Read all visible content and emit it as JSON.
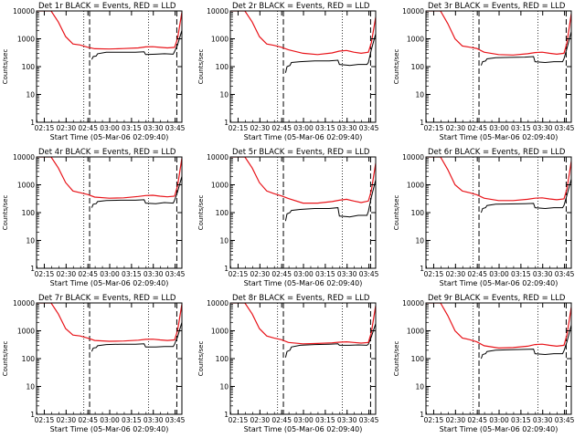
{
  "chart_data": {
    "type": "line",
    "layout": "3x3 grid of panels",
    "y_scale": "log",
    "ylim": [
      1,
      10000
    ],
    "y_tick_labels": [
      "1",
      "10",
      "100",
      "1000",
      "10000"
    ],
    "ylabel": "Counts/sec",
    "xlabel": "Start Time (05-Mar-06 02:09:40)",
    "x_tick_labels": [
      "02:15",
      "02:30",
      "02:45",
      "03:00",
      "03:15",
      "03:30",
      "03:45"
    ],
    "x_ticks_min": [
      5.33,
      20.33,
      35.33,
      50.33,
      65.33,
      80.33,
      95.33
    ],
    "xlim_min": [
      0,
      100
    ],
    "series_legend": {
      "black": "Events",
      "red": "LLD"
    },
    "colors": {
      "events": "#000000",
      "lld": "#e8141a",
      "axes": "#000000"
    },
    "markers": {
      "dotted_lines_min": [
        32.5,
        77.0
      ],
      "dashed_lines_min": [
        36.5,
        96.5
      ]
    },
    "panels": [
      {
        "title": "Det 1r BLACK = Events, RED = LLD",
        "lld": [
          [
            0,
            10000
          ],
          [
            10,
            10000
          ],
          [
            15,
            4000
          ],
          [
            20,
            1200
          ],
          [
            25,
            650
          ],
          [
            30,
            600
          ],
          [
            35,
            500
          ],
          [
            40,
            440
          ],
          [
            50,
            430
          ],
          [
            60,
            445
          ],
          [
            70,
            470
          ],
          [
            75,
            510
          ],
          [
            80,
            520
          ],
          [
            85,
            490
          ],
          [
            90,
            470
          ],
          [
            95,
            490
          ],
          [
            97,
            1000
          ],
          [
            100,
            9000
          ]
        ],
        "events": [
          [
            38,
            180
          ],
          [
            39,
            230
          ],
          [
            41,
            240
          ],
          [
            42,
            290
          ],
          [
            48,
            330
          ],
          [
            58,
            330
          ],
          [
            68,
            330
          ],
          [
            74,
            340
          ],
          [
            75,
            270
          ],
          [
            82,
            280
          ],
          [
            88,
            290
          ],
          [
            94,
            280
          ],
          [
            95,
            350
          ],
          [
            97,
            600
          ],
          [
            100,
            2000
          ]
        ]
      },
      {
        "title": "Det 2r BLACK = Events, RED = LLD",
        "lld": [
          [
            0,
            10000
          ],
          [
            10,
            10000
          ],
          [
            15,
            4000
          ],
          [
            20,
            1200
          ],
          [
            25,
            650
          ],
          [
            30,
            580
          ],
          [
            35,
            500
          ],
          [
            40,
            400
          ],
          [
            50,
            300
          ],
          [
            60,
            270
          ],
          [
            70,
            310
          ],
          [
            75,
            360
          ],
          [
            80,
            380
          ],
          [
            85,
            330
          ],
          [
            90,
            300
          ],
          [
            95,
            330
          ],
          [
            97,
            700
          ],
          [
            100,
            6000
          ]
        ],
        "events": [
          [
            38,
            60
          ],
          [
            39,
            100
          ],
          [
            41,
            110
          ],
          [
            42,
            140
          ],
          [
            48,
            150
          ],
          [
            58,
            160
          ],
          [
            68,
            160
          ],
          [
            74,
            170
          ],
          [
            75,
            120
          ],
          [
            82,
            110
          ],
          [
            88,
            120
          ],
          [
            94,
            120
          ],
          [
            95,
            140
          ],
          [
            97,
            400
          ],
          [
            100,
            1500
          ]
        ]
      },
      {
        "title": "Det 3r BLACK = Events, RED = LLD",
        "lld": [
          [
            0,
            10000
          ],
          [
            10,
            10000
          ],
          [
            15,
            3500
          ],
          [
            20,
            1000
          ],
          [
            25,
            550
          ],
          [
            30,
            500
          ],
          [
            35,
            450
          ],
          [
            40,
            330
          ],
          [
            50,
            270
          ],
          [
            60,
            260
          ],
          [
            70,
            290
          ],
          [
            75,
            320
          ],
          [
            80,
            330
          ],
          [
            85,
            300
          ],
          [
            90,
            280
          ],
          [
            95,
            300
          ],
          [
            97,
            700
          ],
          [
            100,
            8000
          ]
        ],
        "events": [
          [
            38,
            110
          ],
          [
            39,
            150
          ],
          [
            41,
            160
          ],
          [
            42,
            190
          ],
          [
            48,
            210
          ],
          [
            58,
            215
          ],
          [
            68,
            220
          ],
          [
            74,
            230
          ],
          [
            75,
            150
          ],
          [
            82,
            140
          ],
          [
            88,
            150
          ],
          [
            94,
            150
          ],
          [
            95,
            190
          ],
          [
            97,
            450
          ],
          [
            100,
            1800
          ]
        ]
      },
      {
        "title": "Det 4r BLACK = Events, RED = LLD",
        "lld": [
          [
            0,
            10000
          ],
          [
            10,
            10000
          ],
          [
            15,
            4000
          ],
          [
            20,
            1200
          ],
          [
            25,
            600
          ],
          [
            30,
            520
          ],
          [
            35,
            450
          ],
          [
            40,
            360
          ],
          [
            50,
            330
          ],
          [
            60,
            340
          ],
          [
            70,
            380
          ],
          [
            75,
            410
          ],
          [
            80,
            420
          ],
          [
            85,
            390
          ],
          [
            90,
            370
          ],
          [
            95,
            390
          ],
          [
            97,
            900
          ],
          [
            100,
            9000
          ]
        ],
        "events": [
          [
            38,
            150
          ],
          [
            39,
            200
          ],
          [
            41,
            210
          ],
          [
            42,
            250
          ],
          [
            48,
            270
          ],
          [
            58,
            280
          ],
          [
            68,
            280
          ],
          [
            74,
            290
          ],
          [
            75,
            220
          ],
          [
            82,
            210
          ],
          [
            88,
            230
          ],
          [
            94,
            220
          ],
          [
            95,
            280
          ],
          [
            97,
            550
          ],
          [
            100,
            2000
          ]
        ]
      },
      {
        "title": "Det 5r BLACK = Events, RED = LLD",
        "lld": [
          [
            0,
            10000
          ],
          [
            10,
            10000
          ],
          [
            15,
            4000
          ],
          [
            20,
            1200
          ],
          [
            25,
            600
          ],
          [
            30,
            480
          ],
          [
            35,
            400
          ],
          [
            40,
            320
          ],
          [
            50,
            220
          ],
          [
            60,
            220
          ],
          [
            70,
            250
          ],
          [
            75,
            280
          ],
          [
            80,
            300
          ],
          [
            85,
            260
          ],
          [
            90,
            230
          ],
          [
            95,
            260
          ],
          [
            97,
            600
          ],
          [
            100,
            6000
          ]
        ],
        "events": [
          [
            38,
            50
          ],
          [
            39,
            90
          ],
          [
            41,
            100
          ],
          [
            42,
            120
          ],
          [
            48,
            130
          ],
          [
            58,
            140
          ],
          [
            68,
            140
          ],
          [
            74,
            150
          ],
          [
            75,
            75
          ],
          [
            82,
            70
          ],
          [
            88,
            80
          ],
          [
            94,
            80
          ],
          [
            95,
            110
          ],
          [
            97,
            350
          ],
          [
            100,
            1500
          ]
        ]
      },
      {
        "title": "Det 6r BLACK = Events, RED = LLD",
        "lld": [
          [
            0,
            10000
          ],
          [
            10,
            10000
          ],
          [
            15,
            3500
          ],
          [
            20,
            1000
          ],
          [
            25,
            600
          ],
          [
            30,
            520
          ],
          [
            35,
            440
          ],
          [
            40,
            330
          ],
          [
            50,
            270
          ],
          [
            60,
            270
          ],
          [
            70,
            300
          ],
          [
            75,
            330
          ],
          [
            80,
            340
          ],
          [
            85,
            310
          ],
          [
            90,
            290
          ],
          [
            95,
            310
          ],
          [
            97,
            700
          ],
          [
            100,
            7000
          ]
        ],
        "events": [
          [
            38,
            100
          ],
          [
            39,
            140
          ],
          [
            41,
            150
          ],
          [
            42,
            180
          ],
          [
            48,
            200
          ],
          [
            58,
            205
          ],
          [
            68,
            210
          ],
          [
            74,
            215
          ],
          [
            75,
            150
          ],
          [
            82,
            140
          ],
          [
            88,
            150
          ],
          [
            94,
            150
          ],
          [
            95,
            180
          ],
          [
            97,
            420
          ],
          [
            100,
            1600
          ]
        ]
      },
      {
        "title": "Det 7r BLACK = Events, RED = LLD",
        "lld": [
          [
            0,
            10000
          ],
          [
            10,
            10000
          ],
          [
            15,
            4000
          ],
          [
            20,
            1200
          ],
          [
            25,
            700
          ],
          [
            30,
            650
          ],
          [
            35,
            550
          ],
          [
            40,
            450
          ],
          [
            50,
            420
          ],
          [
            60,
            430
          ],
          [
            70,
            460
          ],
          [
            75,
            490
          ],
          [
            80,
            500
          ],
          [
            85,
            470
          ],
          [
            90,
            450
          ],
          [
            95,
            470
          ],
          [
            97,
            1000
          ],
          [
            100,
            9000
          ]
        ],
        "events": [
          [
            38,
            180
          ],
          [
            39,
            240
          ],
          [
            41,
            250
          ],
          [
            42,
            290
          ],
          [
            48,
            320
          ],
          [
            58,
            330
          ],
          [
            68,
            330
          ],
          [
            74,
            340
          ],
          [
            75,
            260
          ],
          [
            82,
            260
          ],
          [
            88,
            270
          ],
          [
            94,
            270
          ],
          [
            95,
            330
          ],
          [
            97,
            600
          ],
          [
            100,
            2000
          ]
        ]
      },
      {
        "title": "Det 8r BLACK = Events, RED = LLD",
        "lld": [
          [
            0,
            10000
          ],
          [
            10,
            10000
          ],
          [
            15,
            4000
          ],
          [
            20,
            1200
          ],
          [
            25,
            650
          ],
          [
            30,
            550
          ],
          [
            35,
            480
          ],
          [
            40,
            380
          ],
          [
            50,
            340
          ],
          [
            60,
            350
          ],
          [
            70,
            370
          ],
          [
            75,
            390
          ],
          [
            80,
            400
          ],
          [
            85,
            380
          ],
          [
            90,
            360
          ],
          [
            95,
            380
          ],
          [
            97,
            850
          ],
          [
            100,
            8000
          ]
        ],
        "events": [
          [
            38,
            110
          ],
          [
            39,
            180
          ],
          [
            41,
            200
          ],
          [
            42,
            260
          ],
          [
            48,
            300
          ],
          [
            58,
            320
          ],
          [
            68,
            330
          ],
          [
            74,
            340
          ],
          [
            75,
            300
          ],
          [
            82,
            300
          ],
          [
            88,
            310
          ],
          [
            94,
            300
          ],
          [
            95,
            330
          ],
          [
            97,
            600
          ],
          [
            100,
            1800
          ]
        ]
      },
      {
        "title": "Det 9r BLACK = Events, RED = LLD",
        "lld": [
          [
            0,
            10000
          ],
          [
            10,
            10000
          ],
          [
            15,
            3500
          ],
          [
            20,
            1000
          ],
          [
            25,
            550
          ],
          [
            30,
            480
          ],
          [
            35,
            400
          ],
          [
            40,
            290
          ],
          [
            50,
            240
          ],
          [
            60,
            250
          ],
          [
            70,
            280
          ],
          [
            75,
            320
          ],
          [
            80,
            330
          ],
          [
            85,
            300
          ],
          [
            90,
            280
          ],
          [
            95,
            300
          ],
          [
            97,
            700
          ],
          [
            100,
            7000
          ]
        ],
        "events": [
          [
            38,
            100
          ],
          [
            39,
            140
          ],
          [
            41,
            150
          ],
          [
            42,
            180
          ],
          [
            48,
            200
          ],
          [
            58,
            210
          ],
          [
            68,
            215
          ],
          [
            74,
            220
          ],
          [
            75,
            150
          ],
          [
            82,
            140
          ],
          [
            88,
            150
          ],
          [
            94,
            150
          ],
          [
            95,
            190
          ],
          [
            97,
            400
          ],
          [
            100,
            1600
          ]
        ]
      }
    ]
  }
}
